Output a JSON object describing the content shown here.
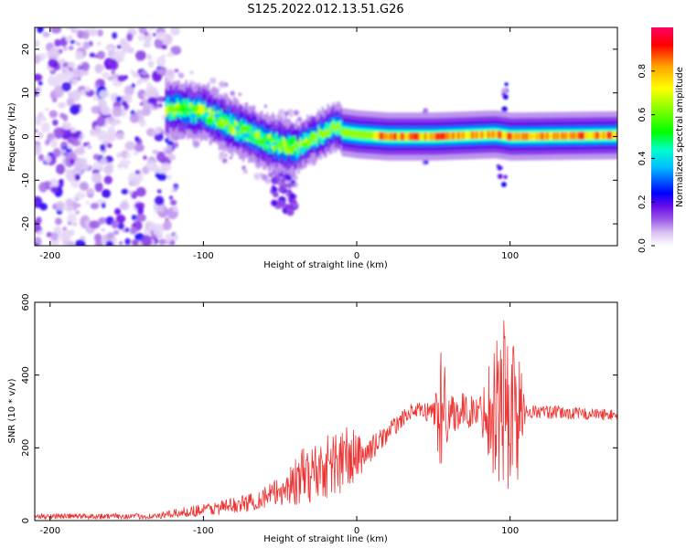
{
  "title": "S125.2022.012.13.51.G26",
  "chart_data": [
    {
      "type": "heatmap",
      "xlabel": "Height of straight line (km)",
      "ylabel": "Frequency (Hz)",
      "xlim": [
        -210,
        170
      ],
      "ylim": [
        -25,
        25
      ],
      "xticks": [
        -200,
        -100,
        0,
        100
      ],
      "yticks": [
        -20,
        -10,
        0,
        10,
        20
      ],
      "colorbar": {
        "label": "Normalized spectral amplitude",
        "range": [
          0,
          1
        ],
        "ticks": [
          0.0,
          0.2,
          0.4,
          0.6,
          0.8
        ],
        "tick_labels": [
          "0.0",
          "0.2",
          "0.4",
          "0.6",
          "0.8"
        ],
        "colormap": [
          "#ffffff",
          "#d9c2f2",
          "#9b59e8",
          "#6a0dea",
          "#0000ff",
          "#00bfff",
          "#00ffcc",
          "#00ff00",
          "#80ff00",
          "#ffff00",
          "#ffa500",
          "#ff0000",
          "#ff0066"
        ]
      },
      "ridge": [
        {
          "x": -125,
          "y": 6.5
        },
        {
          "x": -110,
          "y": 6.0
        },
        {
          "x": -100,
          "y": 5.5
        },
        {
          "x": -90,
          "y": 4.0
        },
        {
          "x": -80,
          "y": 2.0
        },
        {
          "x": -70,
          "y": 0.5
        },
        {
          "x": -60,
          "y": -1.0
        },
        {
          "x": -50,
          "y": -2.0
        },
        {
          "x": -40,
          "y": -2.5
        },
        {
          "x": -30,
          "y": -0.5
        },
        {
          "x": -20,
          "y": 1.0
        },
        {
          "x": -15,
          "y": 2.5
        },
        {
          "x": -10,
          "y": 1.0
        },
        {
          "x": 0,
          "y": 0.5
        },
        {
          "x": 20,
          "y": 0.0
        },
        {
          "x": 50,
          "y": 0.0
        },
        {
          "x": 90,
          "y": 0.5
        },
        {
          "x": 100,
          "y": 0.0
        },
        {
          "x": 170,
          "y": 0.3
        }
      ],
      "noise_region_x": [
        -210,
        -125
      ],
      "noise_level": 0.3
    },
    {
      "type": "line",
      "xlabel": "Height of straight line (km)",
      "ylabel": "SNR (10 * v/v)",
      "xlim": [
        -210,
        170
      ],
      "ylim": [
        0,
        600
      ],
      "xticks": [
        -200,
        -100,
        0,
        100
      ],
      "yticks": [
        0,
        200,
        400,
        600
      ],
      "color": "#ee3333",
      "envelope": [
        {
          "x": -210,
          "mean": 12,
          "amp": 8
        },
        {
          "x": -130,
          "mean": 12,
          "amp": 8
        },
        {
          "x": -110,
          "mean": 25,
          "amp": 15
        },
        {
          "x": -90,
          "mean": 35,
          "amp": 20
        },
        {
          "x": -70,
          "mean": 50,
          "amp": 25
        },
        {
          "x": -50,
          "mean": 80,
          "amp": 40
        },
        {
          "x": -35,
          "mean": 120,
          "amp": 80
        },
        {
          "x": -20,
          "mean": 150,
          "amp": 90
        },
        {
          "x": -5,
          "mean": 170,
          "amp": 100
        },
        {
          "x": 5,
          "mean": 180,
          "amp": 40
        },
        {
          "x": 15,
          "mean": 220,
          "amp": 30
        },
        {
          "x": 25,
          "mean": 260,
          "amp": 25
        },
        {
          "x": 35,
          "mean": 300,
          "amp": 20
        },
        {
          "x": 50,
          "mean": 300,
          "amp": 30
        },
        {
          "x": 55,
          "mean": 300,
          "amp": 200
        },
        {
          "x": 60,
          "mean": 300,
          "amp": 60
        },
        {
          "x": 80,
          "mean": 300,
          "amp": 40
        },
        {
          "x": 95,
          "mean": 320,
          "amp": 280
        },
        {
          "x": 105,
          "mean": 300,
          "amp": 200
        },
        {
          "x": 110,
          "mean": 300,
          "amp": 20
        },
        {
          "x": 170,
          "mean": 290,
          "amp": 15
        }
      ]
    }
  ]
}
